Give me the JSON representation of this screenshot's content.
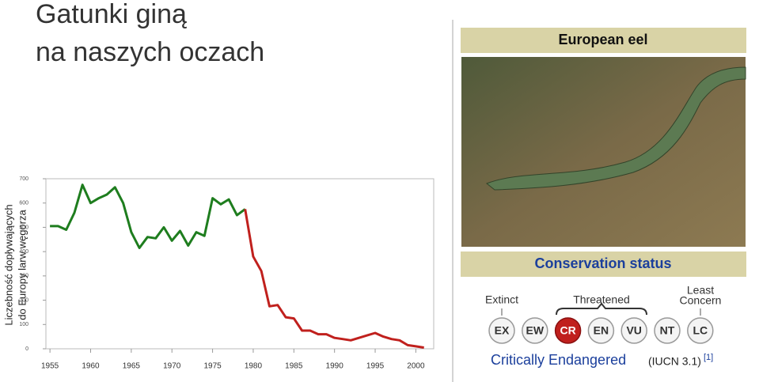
{
  "slide": {
    "title_lines": [
      "Gatunki giną",
      "na naszych oczach"
    ]
  },
  "chart_data": {
    "type": "line",
    "ylabel": [
      "Liczebność dopływających",
      "do Europy larw węgorza"
    ],
    "x": [
      1955,
      1956,
      1957,
      1958,
      1959,
      1960,
      1961,
      1962,
      1963,
      1964,
      1965,
      1966,
      1967,
      1968,
      1969,
      1970,
      1971,
      1972,
      1973,
      1974,
      1975,
      1976,
      1977,
      1978,
      1979,
      1980,
      1981,
      1982,
      1983,
      1984,
      1985,
      1986,
      1987,
      1988,
      1989,
      1990,
      1991,
      1992,
      1993,
      1994,
      1995,
      1996,
      1997,
      1998,
      1999,
      2000,
      2001
    ],
    "series": [
      {
        "color": "#1e7d1e",
        "values": [
          505,
          505,
          490,
          560,
          675,
          600,
          620,
          635,
          665,
          600,
          480,
          415,
          460,
          455,
          500,
          445,
          485,
          425,
          480,
          465,
          620,
          595,
          615,
          550,
          575,
          null,
          null,
          null,
          null,
          null,
          null,
          null,
          null,
          null,
          null,
          null,
          null,
          null,
          null,
          null,
          null,
          null,
          null,
          null,
          null,
          null,
          null
        ]
      },
      {
        "color": "#c0201d",
        "values": [
          null,
          null,
          null,
          null,
          null,
          null,
          null,
          null,
          null,
          null,
          null,
          null,
          null,
          null,
          null,
          null,
          null,
          null,
          null,
          null,
          null,
          null,
          null,
          null,
          575,
          380,
          320,
          175,
          180,
          130,
          125,
          75,
          75,
          60,
          60,
          45,
          40,
          35,
          45,
          55,
          65,
          50,
          40,
          35,
          15,
          10,
          5
        ]
      }
    ],
    "xlim": [
      1954.5,
      2002.2
    ],
    "ylim": [
      0,
      700
    ],
    "xticks": [
      1955,
      1960,
      1965,
      1970,
      1975,
      1980,
      1985,
      1990,
      1995,
      2000
    ],
    "yticks": [
      0,
      100,
      200,
      300,
      400,
      500,
      600,
      700
    ]
  },
  "infobox": {
    "title": "European eel",
    "section": "Conservation status",
    "groups": [
      "Extinct",
      "Threatened",
      "Least",
      "Concern"
    ],
    "codes": [
      "EX",
      "EW",
      "CR",
      "EN",
      "VU",
      "NT",
      "LC"
    ],
    "status": "Critically Endangered",
    "source": "(IUCN 3.1)",
    "ref": "[1]"
  }
}
